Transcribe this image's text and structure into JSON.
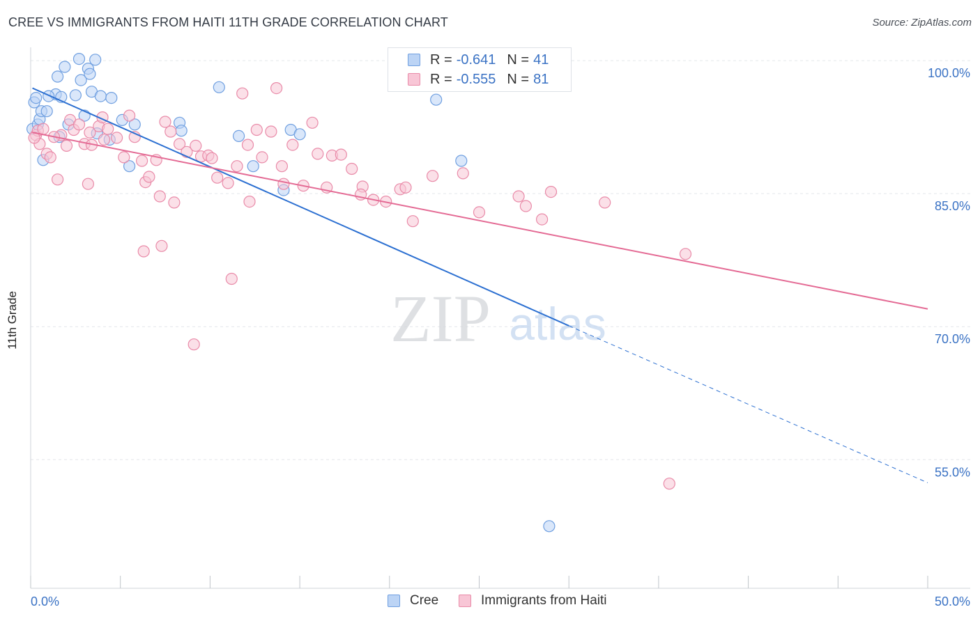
{
  "title": "CREE VS IMMIGRANTS FROM HAITI 11TH GRADE CORRELATION CHART",
  "source": "Source: ZipAtlas.com",
  "watermark": {
    "zip": "ZIP",
    "atlas": "atlas"
  },
  "legend": {
    "r_label": "R =",
    "n_label": "N =",
    "rows": [
      {
        "r": "-0.641",
        "n": "41",
        "fill": "#bcd4f5",
        "stroke": "#6f9fe0"
      },
      {
        "r": "-0.555",
        "n": "81",
        "fill": "#f8c6d6",
        "stroke": "#e98aa8"
      }
    ]
  },
  "bottom_legend": [
    {
      "label": "Cree",
      "fill": "#bcd4f5",
      "stroke": "#6f9fe0"
    },
    {
      "label": "Immigrants from Haiti",
      "fill": "#f8c6d6",
      "stroke": "#e98aa8"
    }
  ],
  "chart_data": {
    "type": "scatter",
    "title": "CREE VS IMMIGRANTS FROM HAITI 11TH GRADE CORRELATION CHART",
    "xlabel": "",
    "ylabel": "11th Grade",
    "xlim": [
      0,
      50
    ],
    "ylim": [
      40.5,
      101.5
    ],
    "x_tick_labels": [
      "0.0%",
      "50.0%"
    ],
    "y_ticks": [
      100,
      85,
      70,
      55
    ],
    "y_tick_labels": [
      "100.0%",
      "85.0%",
      "70.0%",
      "55.0%"
    ],
    "grid": true,
    "series": [
      {
        "name": "Cree",
        "color": "#6f9fe0",
        "fill": "#bcd4f5",
        "line_color": "#2b6fd1",
        "trend": {
          "x0": 0.1,
          "y0": 96.9,
          "x1": 30.0,
          "y1": 70.1,
          "dash_to_x": 50.0,
          "dash_to_y": 52.4
        },
        "points": [
          [
            0.1,
            92.3
          ],
          [
            0.2,
            95.3
          ],
          [
            0.3,
            95.8
          ],
          [
            0.4,
            92.8
          ],
          [
            0.5,
            93.4
          ],
          [
            0.6,
            94.3
          ],
          [
            0.7,
            88.8
          ],
          [
            0.9,
            94.3
          ],
          [
            1.4,
            96.2
          ],
          [
            1.5,
            98.2
          ],
          [
            1.6,
            91.4
          ],
          [
            1.7,
            95.9
          ],
          [
            1.9,
            99.3
          ],
          [
            2.1,
            92.8
          ],
          [
            2.5,
            96.1
          ],
          [
            2.8,
            97.8
          ],
          [
            2.7,
            100.2
          ],
          [
            3.0,
            93.8
          ],
          [
            3.2,
            99.1
          ],
          [
            3.3,
            98.5
          ],
          [
            3.4,
            96.5
          ],
          [
            3.7,
            91.8
          ],
          [
            3.9,
            96.0
          ],
          [
            4.4,
            91.1
          ],
          [
            4.5,
            95.8
          ],
          [
            5.1,
            93.3
          ],
          [
            5.5,
            88.1
          ],
          [
            5.8,
            92.8
          ],
          [
            8.3,
            93.0
          ],
          [
            8.4,
            92.1
          ],
          [
            10.5,
            97.0
          ],
          [
            11.6,
            91.5
          ],
          [
            12.4,
            88.1
          ],
          [
            14.1,
            85.4
          ],
          [
            14.5,
            92.2
          ],
          [
            15.0,
            91.7
          ],
          [
            22.6,
            95.6
          ],
          [
            24.0,
            88.7
          ],
          [
            28.9,
            47.5
          ],
          [
            3.6,
            100.1
          ],
          [
            1.0,
            96.0
          ]
        ]
      },
      {
        "name": "Immigrants from Haiti",
        "color": "#e98aa8",
        "fill": "#f8c6d6",
        "line_color": "#e46a94",
        "trend": {
          "x0": 0.1,
          "y0": 91.9,
          "x1": 50.0,
          "y1": 72.0
        },
        "points": [
          [
            0.3,
            91.6
          ],
          [
            0.4,
            92.1
          ],
          [
            0.5,
            90.6
          ],
          [
            0.7,
            92.3
          ],
          [
            0.9,
            89.5
          ],
          [
            1.1,
            89.1
          ],
          [
            1.5,
            86.6
          ],
          [
            1.7,
            91.6
          ],
          [
            2.0,
            90.4
          ],
          [
            2.2,
            93.3
          ],
          [
            2.4,
            92.2
          ],
          [
            2.7,
            92.8
          ],
          [
            3.0,
            90.6
          ],
          [
            3.2,
            86.1
          ],
          [
            3.4,
            90.5
          ],
          [
            3.8,
            92.6
          ],
          [
            4.1,
            91.1
          ],
          [
            4.3,
            92.3
          ],
          [
            4.8,
            91.3
          ],
          [
            5.2,
            89.1
          ],
          [
            5.5,
            93.8
          ],
          [
            5.8,
            91.4
          ],
          [
            6.2,
            88.7
          ],
          [
            6.4,
            86.3
          ],
          [
            6.6,
            86.9
          ],
          [
            7.0,
            88.8
          ],
          [
            7.2,
            84.7
          ],
          [
            7.5,
            93.1
          ],
          [
            7.8,
            92.0
          ],
          [
            8.0,
            84.0
          ],
          [
            8.3,
            90.6
          ],
          [
            8.7,
            89.7
          ],
          [
            9.2,
            90.4
          ],
          [
            9.5,
            89.2
          ],
          [
            9.9,
            89.3
          ],
          [
            10.1,
            89.0
          ],
          [
            10.4,
            86.8
          ],
          [
            11.0,
            86.2
          ],
          [
            11.5,
            88.1
          ],
          [
            11.8,
            96.3
          ],
          [
            12.2,
            84.1
          ],
          [
            12.6,
            92.2
          ],
          [
            12.9,
            89.1
          ],
          [
            13.4,
            92.0
          ],
          [
            13.7,
            96.9
          ],
          [
            14.1,
            86.1
          ],
          [
            14.6,
            90.5
          ],
          [
            15.2,
            85.9
          ],
          [
            15.7,
            93.0
          ],
          [
            16.5,
            85.7
          ],
          [
            16.8,
            89.3
          ],
          [
            17.3,
            89.4
          ],
          [
            17.9,
            87.8
          ],
          [
            18.5,
            85.8
          ],
          [
            19.1,
            84.3
          ],
          [
            19.8,
            84.1
          ],
          [
            20.6,
            85.5
          ],
          [
            21.3,
            81.9
          ],
          [
            22.4,
            87.0
          ],
          [
            24.1,
            87.3
          ],
          [
            25.0,
            82.9
          ],
          [
            27.2,
            84.7
          ],
          [
            27.6,
            83.6
          ],
          [
            28.5,
            82.1
          ],
          [
            29.0,
            85.2
          ],
          [
            32.0,
            84.0
          ],
          [
            36.5,
            78.2
          ],
          [
            7.3,
            79.1
          ],
          [
            6.3,
            78.5
          ],
          [
            9.1,
            68.0
          ],
          [
            11.2,
            75.4
          ],
          [
            35.6,
            52.3
          ],
          [
            18.4,
            84.9
          ],
          [
            20.9,
            85.7
          ],
          [
            14.0,
            88.1
          ],
          [
            12.1,
            90.5
          ],
          [
            16.0,
            89.5
          ],
          [
            4.0,
            93.6
          ],
          [
            3.3,
            91.9
          ],
          [
            0.2,
            91.3
          ],
          [
            1.3,
            91.4
          ]
        ]
      }
    ]
  }
}
